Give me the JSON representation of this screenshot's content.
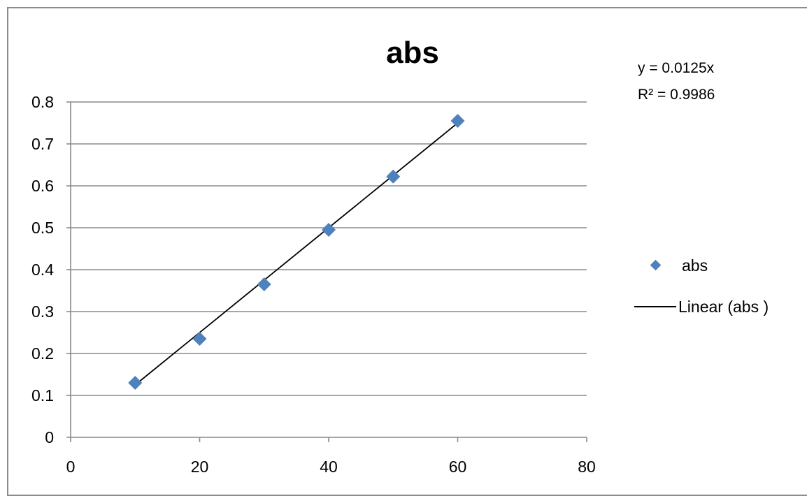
{
  "chart_data": {
    "type": "scatter",
    "title": "abs",
    "xlabel": "",
    "ylabel": "",
    "xlim": [
      0,
      80
    ],
    "ylim": [
      0,
      0.8
    ],
    "x_ticks": [
      0,
      20,
      40,
      60,
      80
    ],
    "x_tick_labels": [
      "0",
      "20",
      "40",
      "60",
      "80"
    ],
    "y_ticks": [
      0,
      0.1,
      0.2,
      0.3,
      0.4,
      0.5,
      0.6,
      0.7,
      0.8
    ],
    "y_tick_labels": [
      "0",
      "0.1",
      "0.2",
      "0.3",
      "0.4",
      "0.5",
      "0.6",
      "0.7",
      "0.8"
    ],
    "grid": "horizontal",
    "legend_position": "right",
    "series": [
      {
        "name": "abs",
        "x": [
          10,
          20,
          30,
          40,
          50,
          60
        ],
        "y": [
          0.13,
          0.235,
          0.365,
          0.495,
          0.622,
          0.755
        ],
        "color": "#4f81bd",
        "marker": "diamond"
      }
    ],
    "trendline": {
      "name": "Linear (abs )",
      "x_start": 10,
      "x_end": 60,
      "slope": 0.0125,
      "color": "#000000"
    },
    "annotations": {
      "equation": "y = 0.0125x",
      "r_squared": "R² = 0.9986"
    },
    "legend": [
      {
        "label": "abs",
        "kind": "marker"
      },
      {
        "label": "Linear (abs )",
        "kind": "line"
      }
    ]
  }
}
